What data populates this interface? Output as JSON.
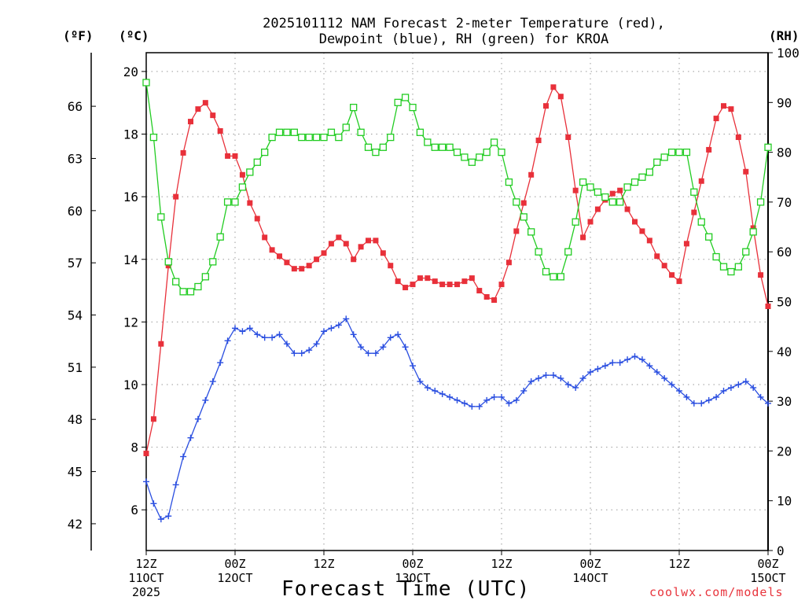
{
  "title_line1": "2025101112 NAM Forecast 2-meter Temperature (red),",
  "title_line2": "Dewpoint (blue), RH (green) for KROA",
  "unit_f": "(ºF)",
  "unit_c": "(ºC)",
  "unit_rh": "(RH)",
  "xlabel": "Forecast Time (UTC)",
  "credit": "coolwx.com/models",
  "colors": {
    "temperature": "#e8303a",
    "dewpoint": "#2a4ee0",
    "rh": "#22cc22",
    "grid": "#9a9a9a"
  },
  "chart_data": {
    "type": "line",
    "x_unit": "forecast hour",
    "xlim": [
      0,
      84
    ],
    "x_ticks": [
      {
        "hour": 0,
        "lines": [
          "12Z",
          "11OCT",
          "2025"
        ]
      },
      {
        "hour": 12,
        "lines": [
          "00Z",
          "12OCT"
        ]
      },
      {
        "hour": 24,
        "lines": [
          "12Z"
        ]
      },
      {
        "hour": 36,
        "lines": [
          "00Z",
          "13OCT"
        ]
      },
      {
        "hour": 48,
        "lines": [
          "12Z"
        ]
      },
      {
        "hour": 60,
        "lines": [
          "00Z",
          "14OCT"
        ]
      },
      {
        "hour": 72,
        "lines": [
          "12Z"
        ]
      },
      {
        "hour": 84,
        "lines": [
          "00Z",
          "15OCT"
        ]
      }
    ],
    "y_left_c": {
      "label": "(ºC)",
      "range": [
        4.7,
        20.6
      ],
      "ticks": [
        6,
        8,
        10,
        12,
        14,
        16,
        18,
        20
      ]
    },
    "y_left_f": {
      "label": "(ºF)",
      "ticks": [
        42,
        45,
        48,
        51,
        54,
        57,
        60,
        63,
        66
      ]
    },
    "y_right_rh": {
      "label": "(RH)",
      "range": [
        0,
        100
      ],
      "ticks": [
        0,
        10,
        20,
        30,
        40,
        50,
        60,
        70,
        80,
        90,
        100
      ]
    },
    "grid": true,
    "series": [
      {
        "name": "Temperature",
        "unit": "C",
        "marker": "filled-square",
        "color": "#e8303a",
        "x": [
          0,
          1,
          2,
          3,
          4,
          5,
          6,
          7,
          8,
          9,
          10,
          11,
          12,
          13,
          14,
          15,
          16,
          17,
          18,
          19,
          20,
          21,
          22,
          23,
          24,
          25,
          26,
          27,
          28,
          29,
          30,
          31,
          32,
          33,
          34,
          35,
          36,
          37,
          38,
          39,
          40,
          41,
          42,
          43,
          44,
          45,
          46,
          47,
          48,
          49,
          50,
          51,
          52,
          53,
          54,
          55,
          56,
          57,
          58,
          59,
          60,
          61,
          62,
          63,
          64,
          65,
          66,
          67,
          68,
          69,
          70,
          71,
          72,
          73,
          74,
          75,
          76,
          77,
          78,
          79,
          80,
          81,
          82,
          83,
          84
        ],
        "values": [
          7.8,
          8.9,
          11.3,
          13.8,
          16.0,
          17.4,
          18.4,
          18.8,
          19.0,
          18.6,
          18.1,
          17.3,
          17.3,
          16.7,
          15.8,
          15.3,
          14.7,
          14.3,
          14.1,
          13.9,
          13.7,
          13.7,
          13.8,
          14.0,
          14.2,
          14.5,
          14.7,
          14.5,
          14.0,
          14.4,
          14.6,
          14.6,
          14.2,
          13.8,
          13.3,
          13.1,
          13.2,
          13.4,
          13.4,
          13.3,
          13.2,
          13.2,
          13.2,
          13.3,
          13.4,
          13.0,
          12.8,
          12.7,
          13.2,
          13.9,
          14.9,
          15.8,
          16.7,
          17.8,
          18.9,
          19.5,
          19.2,
          17.9,
          16.2,
          14.7,
          15.2,
          15.6,
          15.9,
          16.1,
          16.2,
          15.6,
          15.2,
          14.9,
          14.6,
          14.1,
          13.8,
          13.5,
          13.3,
          14.5,
          15.5,
          16.5,
          17.5,
          18.5,
          18.9,
          18.8,
          17.9,
          16.8,
          15.0,
          13.5,
          12.5
        ]
      },
      {
        "name": "Dewpoint",
        "unit": "C",
        "marker": "plus",
        "color": "#2a4ee0",
        "x": [
          0,
          1,
          2,
          3,
          4,
          5,
          6,
          7,
          8,
          9,
          10,
          11,
          12,
          13,
          14,
          15,
          16,
          17,
          18,
          19,
          20,
          21,
          22,
          23,
          24,
          25,
          26,
          27,
          28,
          29,
          30,
          31,
          32,
          33,
          34,
          35,
          36,
          37,
          38,
          39,
          40,
          41,
          42,
          43,
          44,
          45,
          46,
          47,
          48,
          49,
          50,
          51,
          52,
          53,
          54,
          55,
          56,
          57,
          58,
          59,
          60,
          61,
          62,
          63,
          64,
          65,
          66,
          67,
          68,
          69,
          70,
          71,
          72,
          73,
          74,
          75,
          76,
          77,
          78,
          79,
          80,
          81,
          82,
          83,
          84
        ],
        "values": [
          6.9,
          6.2,
          5.7,
          5.8,
          6.8,
          7.7,
          8.3,
          8.9,
          9.5,
          10.1,
          10.7,
          11.4,
          11.8,
          11.7,
          11.8,
          11.6,
          11.5,
          11.5,
          11.6,
          11.3,
          11.0,
          11.0,
          11.1,
          11.3,
          11.7,
          11.8,
          11.9,
          12.1,
          11.6,
          11.2,
          11.0,
          11.0,
          11.2,
          11.5,
          11.6,
          11.2,
          10.6,
          10.1,
          9.9,
          9.8,
          9.7,
          9.6,
          9.5,
          9.4,
          9.3,
          9.3,
          9.5,
          9.6,
          9.6,
          9.4,
          9.5,
          9.8,
          10.1,
          10.2,
          10.3,
          10.3,
          10.2,
          10.0,
          9.9,
          10.2,
          10.4,
          10.5,
          10.6,
          10.7,
          10.7,
          10.8,
          10.9,
          10.8,
          10.6,
          10.4,
          10.2,
          10.0,
          9.8,
          9.6,
          9.4,
          9.4,
          9.5,
          9.6,
          9.8,
          9.9,
          10.0,
          10.1,
          9.9,
          9.6,
          9.4
        ]
      },
      {
        "name": "RH",
        "unit": "%",
        "axis": "right",
        "marker": "open-square",
        "color": "#22cc22",
        "x": [
          0,
          1,
          2,
          3,
          4,
          5,
          6,
          7,
          8,
          9,
          10,
          11,
          12,
          13,
          14,
          15,
          16,
          17,
          18,
          19,
          20,
          21,
          22,
          23,
          24,
          25,
          26,
          27,
          28,
          29,
          30,
          31,
          32,
          33,
          34,
          35,
          36,
          37,
          38,
          39,
          40,
          41,
          42,
          43,
          44,
          45,
          46,
          47,
          48,
          49,
          50,
          51,
          52,
          53,
          54,
          55,
          56,
          57,
          58,
          59,
          60,
          61,
          62,
          63,
          64,
          65,
          66,
          67,
          68,
          69,
          70,
          71,
          72,
          73,
          74,
          75,
          76,
          77,
          78,
          79,
          80,
          81,
          82,
          83,
          84
        ],
        "values": [
          94,
          83,
          67,
          58,
          54,
          52,
          52,
          53,
          55,
          58,
          63,
          70,
          70,
          73,
          76,
          78,
          80,
          83,
          84,
          84,
          84,
          83,
          83,
          83,
          83,
          84,
          83,
          85,
          89,
          84,
          81,
          80,
          81,
          83,
          90,
          91,
          89,
          84,
          82,
          81,
          81,
          81,
          80,
          79,
          78,
          79,
          80,
          82,
          80,
          74,
          70,
          67,
          64,
          60,
          56,
          55,
          55,
          60,
          66,
          74,
          73,
          72,
          71,
          70,
          70,
          73,
          74,
          75,
          76,
          78,
          79,
          80,
          80,
          80,
          72,
          66,
          63,
          59,
          57,
          56,
          57,
          60,
          64,
          70,
          81
        ]
      }
    ]
  }
}
